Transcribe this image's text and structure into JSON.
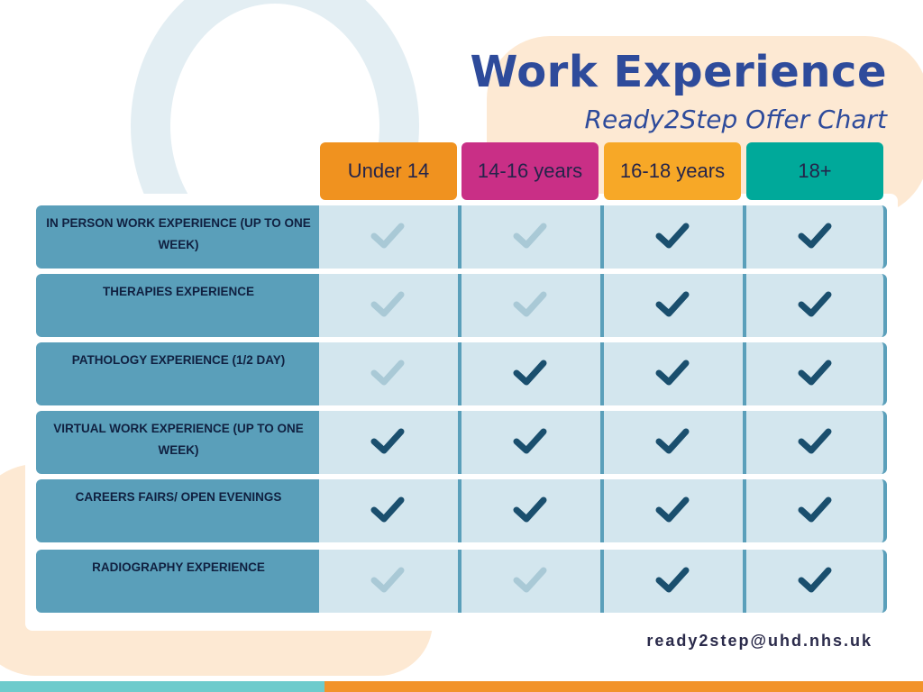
{
  "header": {
    "title": "Work Experience",
    "subtitle": "Ready2Step Offer Chart"
  },
  "columns": [
    {
      "label": "Under 14",
      "color": "#f0921f"
    },
    {
      "label": "14-16 years",
      "color": "#c92f86"
    },
    {
      "label": "16-18 years",
      "color": "#f7a827"
    },
    {
      "label": "18+",
      "color": "#00a99a"
    }
  ],
  "rows": [
    {
      "label": "IN PERSON WORK EXPERIENCE (UP TO ONE WEEK)",
      "available": [
        false,
        false,
        true,
        true
      ]
    },
    {
      "label": "THERAPIES EXPERIENCE",
      "available": [
        false,
        false,
        true,
        true
      ]
    },
    {
      "label": "PATHOLOGY EXPERIENCE (1/2 DAY)",
      "available": [
        false,
        true,
        true,
        true
      ]
    },
    {
      "label": "VIRTUAL WORK EXPERIENCE (UP TO ONE WEEK)",
      "available": [
        true,
        true,
        true,
        true
      ]
    },
    {
      "label": "CAREERS FAIRS/ OPEN EVENINGS",
      "available": [
        true,
        true,
        true,
        true
      ]
    },
    {
      "label": "RADIOGRAPHY EXPERIENCE",
      "available": [
        false,
        false,
        true,
        true
      ]
    }
  ],
  "icons": {
    "offered": "check-icon",
    "not_offered": "check-faded-icon"
  },
  "colors": {
    "check_on": "#1a4f6e",
    "check_off": "#a9c9d6",
    "label_bg": "#5a9fba",
    "cell_bg": "#d3e6ee"
  },
  "footer": {
    "email": "ready2step@uhd.nhs.uk"
  }
}
